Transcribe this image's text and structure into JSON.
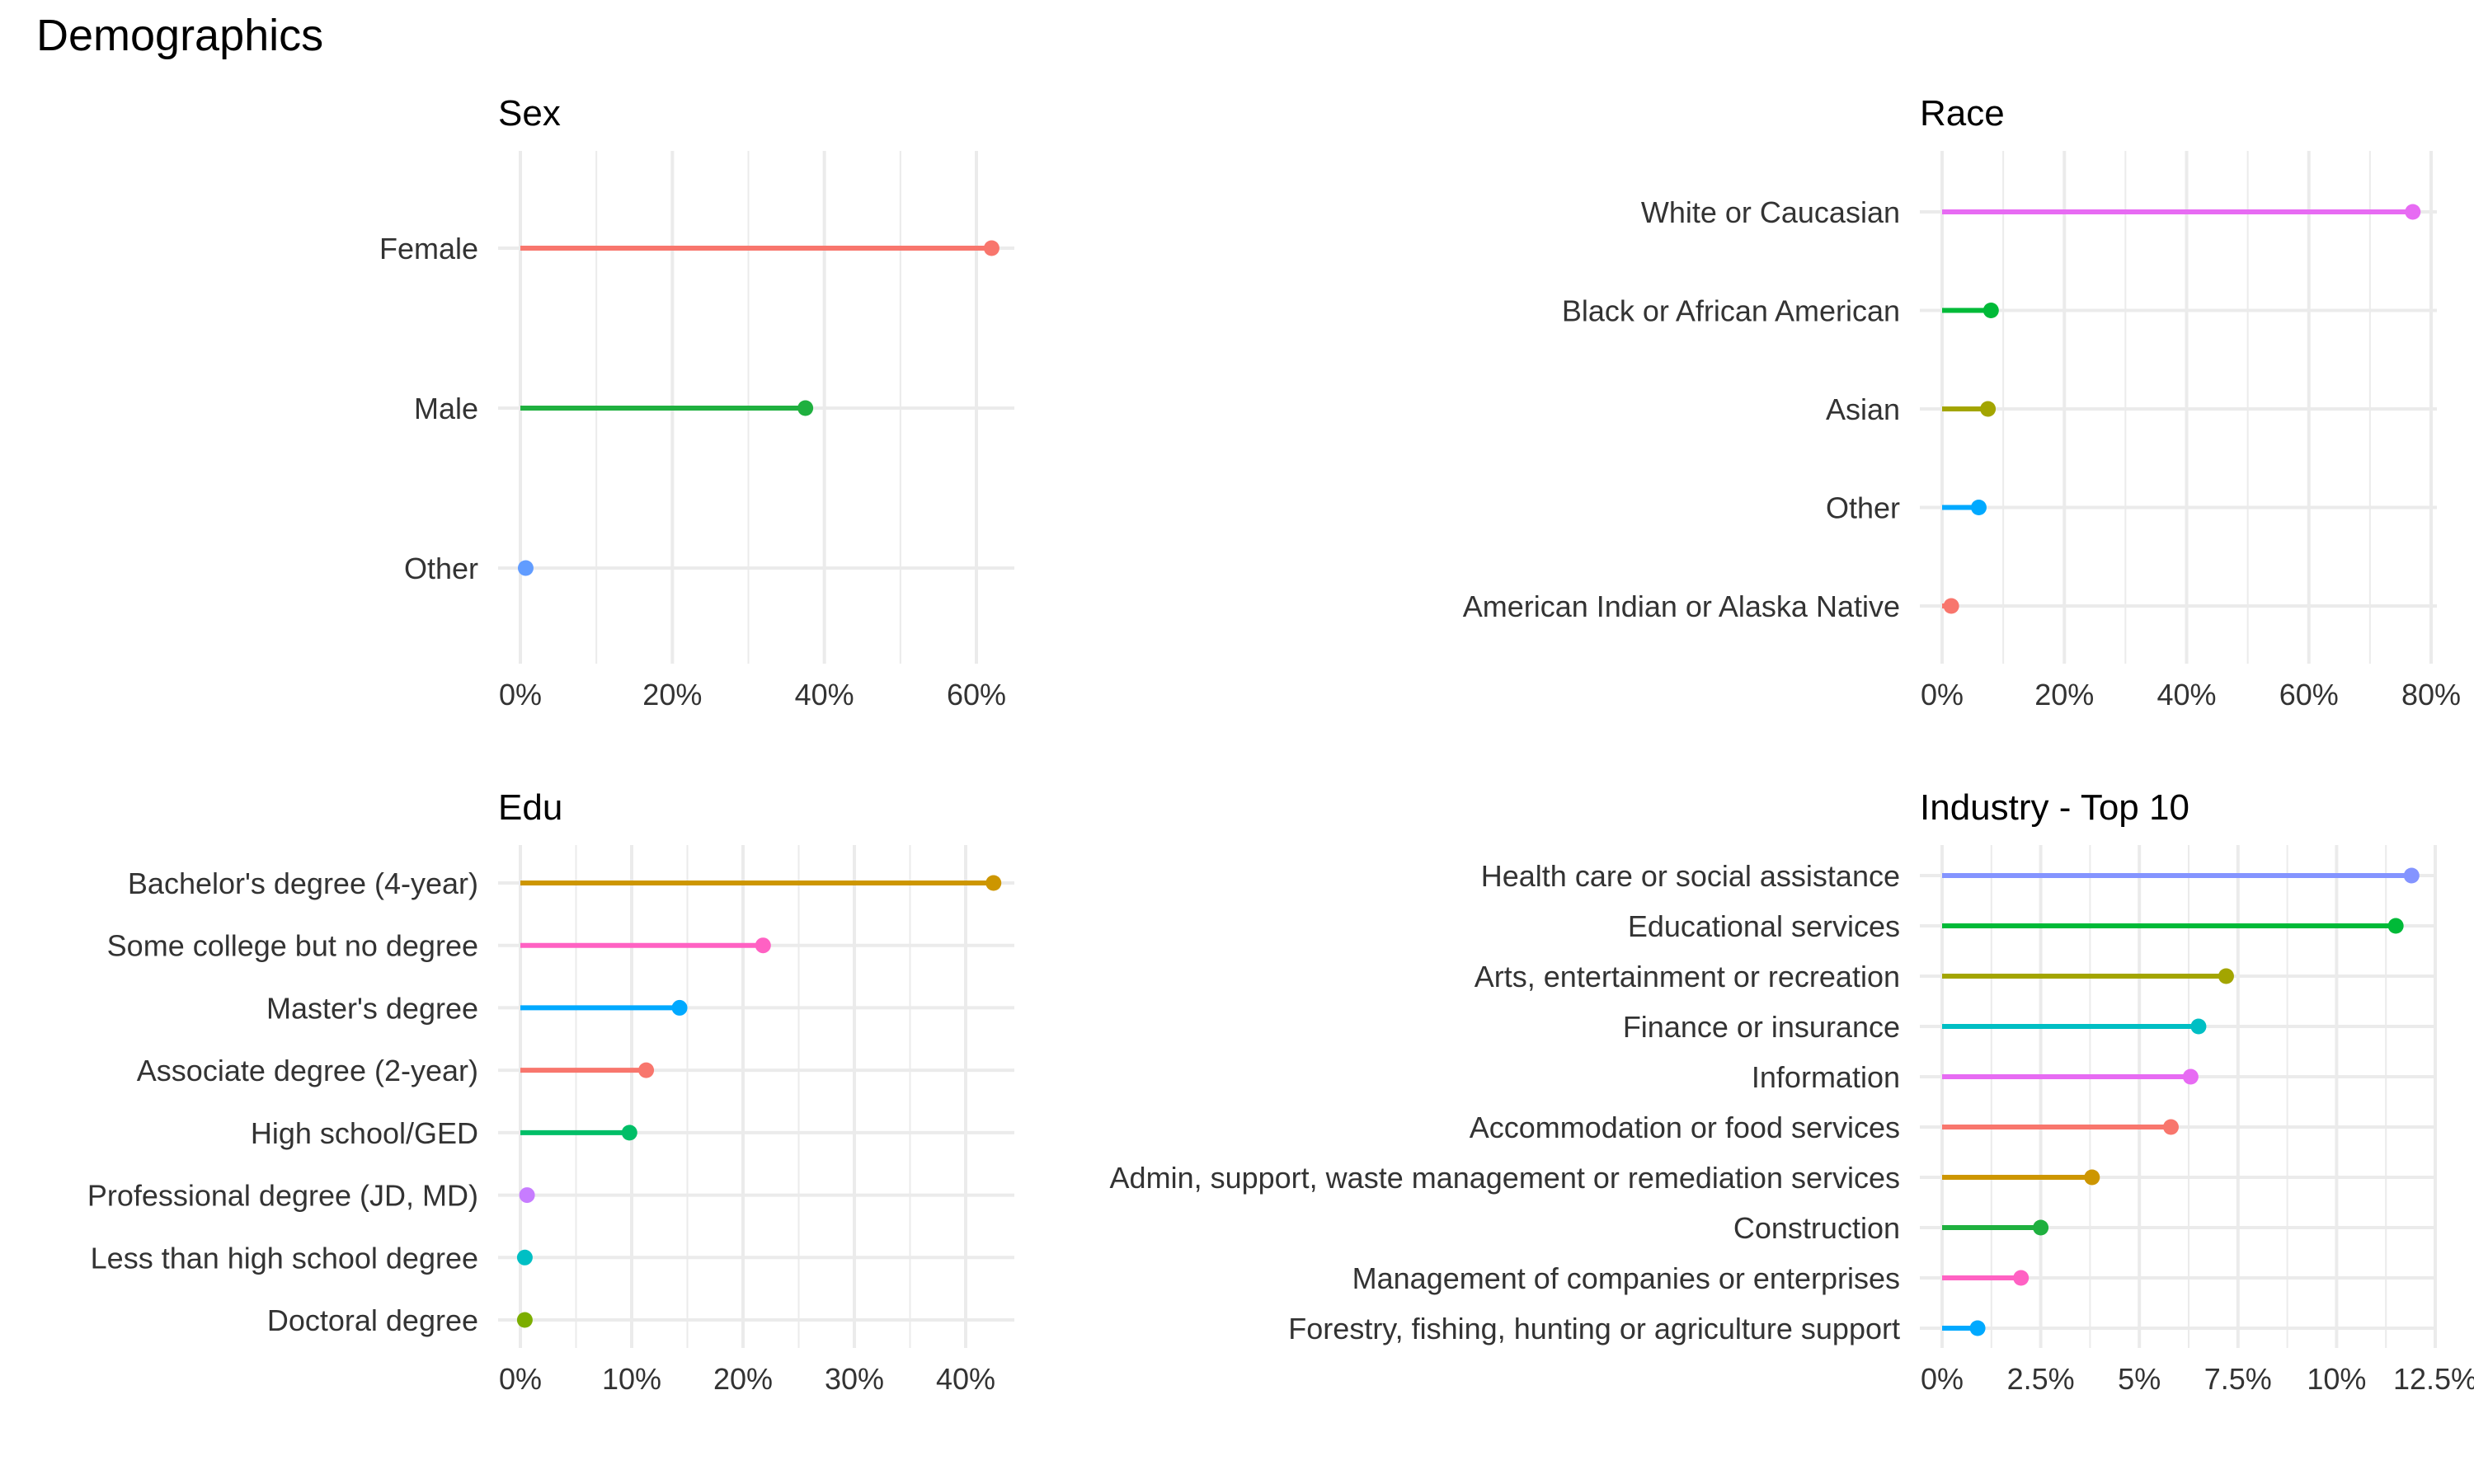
{
  "page": {
    "title": "Demographics"
  },
  "chart_data": [
    {
      "type": "lollipop",
      "title": "Sex",
      "xlabel": "",
      "ylabel": "",
      "xlim": [
        0,
        65
      ],
      "x_ticks": [
        0,
        20,
        40,
        60
      ],
      "x_tick_labels": [
        "0%",
        "20%",
        "40%",
        "60%"
      ],
      "grid": true,
      "categories": [
        "Female",
        "Male",
        "Other"
      ],
      "values": [
        62,
        37.5,
        0.7
      ],
      "colors": [
        "#F8766D",
        "#1FB03F",
        "#619CFF"
      ]
    },
    {
      "type": "lollipop",
      "title": "Race",
      "xlabel": "",
      "ylabel": "",
      "xlim": [
        0,
        80
      ],
      "x_ticks": [
        0,
        20,
        40,
        60,
        80
      ],
      "x_tick_labels": [
        "0%",
        "20%",
        "40%",
        "60%",
        "80%"
      ],
      "grid": true,
      "categories": [
        "White or Caucasian",
        "Black or African American",
        "Asian",
        "Other",
        "American Indian or Alaska Native"
      ],
      "values": [
        77,
        8,
        7.5,
        6,
        1.5
      ],
      "colors": [
        "#E76BF3",
        "#00BA38",
        "#A3A500",
        "#00A9FF",
        "#F8766D"
      ]
    },
    {
      "type": "lollipop",
      "title": "Edu",
      "xlabel": "",
      "ylabel": "",
      "xlim": [
        0,
        44
      ],
      "x_ticks": [
        0,
        10,
        20,
        30,
        40
      ],
      "x_tick_labels": [
        "0%",
        "10%",
        "20%",
        "30%",
        "40%"
      ],
      "grid": true,
      "categories": [
        "Bachelor's degree (4-year)",
        "Some college but no degree",
        "Master's degree",
        "Associate degree (2-year)",
        "High school/GED",
        "Professional degree (JD, MD)",
        "Less than high school degree",
        "Doctoral degree"
      ],
      "values": [
        42.5,
        21.8,
        14.3,
        11.3,
        9.8,
        0.6,
        0.4,
        0.4
      ],
      "colors": [
        "#CD9600",
        "#FF61C3",
        "#00A9FF",
        "#F8766D",
        "#00BE67",
        "#C77CFF",
        "#00BFC4",
        "#7CAE00"
      ]
    },
    {
      "type": "lollipop",
      "title": "Industry - Top 10",
      "xlabel": "",
      "ylabel": "",
      "xlim": [
        0,
        12.5
      ],
      "x_ticks": [
        0,
        2.5,
        5,
        7.5,
        10,
        12.5
      ],
      "x_tick_labels": [
        "0%",
        "2.5%",
        "5%",
        "7.5%",
        "10%",
        "12.5%"
      ],
      "grid": true,
      "categories": [
        "Health care or social assistance",
        "Educational services",
        "Arts, entertainment or recreation",
        "Finance or insurance",
        "Information",
        "Accommodation or food services",
        "Admin, support, waste management or remediation services",
        "Construction",
        "Management of companies or enterprises",
        "Forestry, fishing, hunting or agriculture support"
      ],
      "values": [
        11.9,
        11.5,
        7.2,
        6.5,
        6.3,
        5.8,
        3.8,
        2.5,
        2.0,
        0.9
      ],
      "colors": [
        "#8494FF",
        "#00BA38",
        "#A3A500",
        "#00BFC4",
        "#E76BF3",
        "#F8766D",
        "#CD9600",
        "#1FB03F",
        "#FF61C3",
        "#00A9FF"
      ]
    }
  ]
}
